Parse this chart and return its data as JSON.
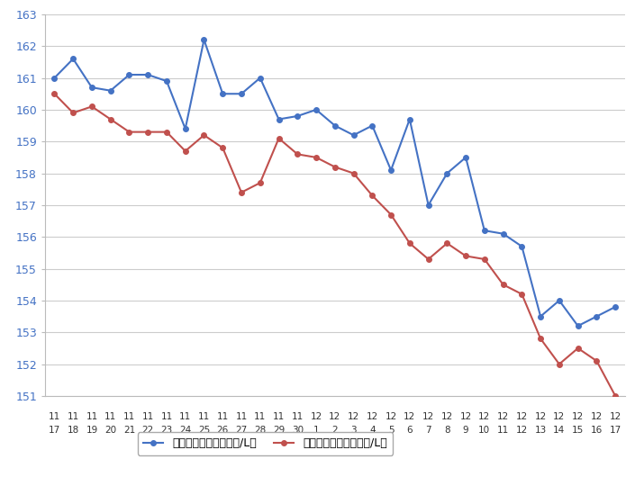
{
  "x_labels_row1": [
    "11",
    "11",
    "11",
    "11",
    "11",
    "11",
    "11",
    "11",
    "11",
    "11",
    "11",
    "11",
    "11",
    "11",
    "12",
    "12",
    "12",
    "12",
    "12",
    "12",
    "12",
    "12",
    "12",
    "12",
    "12",
    "12",
    "12",
    "12",
    "12",
    "12",
    "12"
  ],
  "x_labels_row2": [
    "17",
    "18",
    "19",
    "20",
    "21",
    "22",
    "23",
    "24",
    "25",
    "26",
    "27",
    "28",
    "29",
    "30",
    "1",
    "2",
    "3",
    "4",
    "5",
    "6",
    "7",
    "8",
    "9",
    "10",
    "11",
    "12",
    "13",
    "14",
    "15",
    "16",
    "17"
  ],
  "blue_values": [
    161.0,
    161.6,
    160.7,
    160.6,
    161.1,
    161.1,
    160.9,
    159.4,
    162.2,
    160.5,
    160.5,
    161.0,
    159.7,
    159.8,
    160.0,
    159.5,
    159.2,
    159.5,
    158.1,
    159.7,
    157.0,
    158.0,
    158.5,
    156.2,
    156.1,
    155.7,
    153.5,
    154.0,
    153.2,
    153.5,
    153.8
  ],
  "red_values": [
    160.5,
    159.9,
    160.1,
    159.7,
    159.3,
    159.3,
    159.3,
    158.7,
    159.2,
    158.8,
    157.4,
    157.7,
    159.1,
    158.6,
    158.5,
    158.2,
    158.0,
    157.3,
    156.7,
    155.8,
    155.3,
    155.8,
    155.4,
    155.3,
    154.5,
    154.2,
    152.8,
    152.0,
    152.5,
    152.1,
    151.0
  ],
  "blue_label": "ハイオク看板価格（円/L）",
  "red_label": "ハイオク実売価格（円/L）",
  "blue_color": "#4472C4",
  "red_color": "#C0504D",
  "ylim_min": 151,
  "ylim_max": 163,
  "yticks": [
    151,
    152,
    153,
    154,
    155,
    156,
    157,
    158,
    159,
    160,
    161,
    162,
    163
  ],
  "grid_color": "#CCCCCC",
  "bg_color": "#FFFFFF",
  "marker_size": 4,
  "line_width": 1.5
}
